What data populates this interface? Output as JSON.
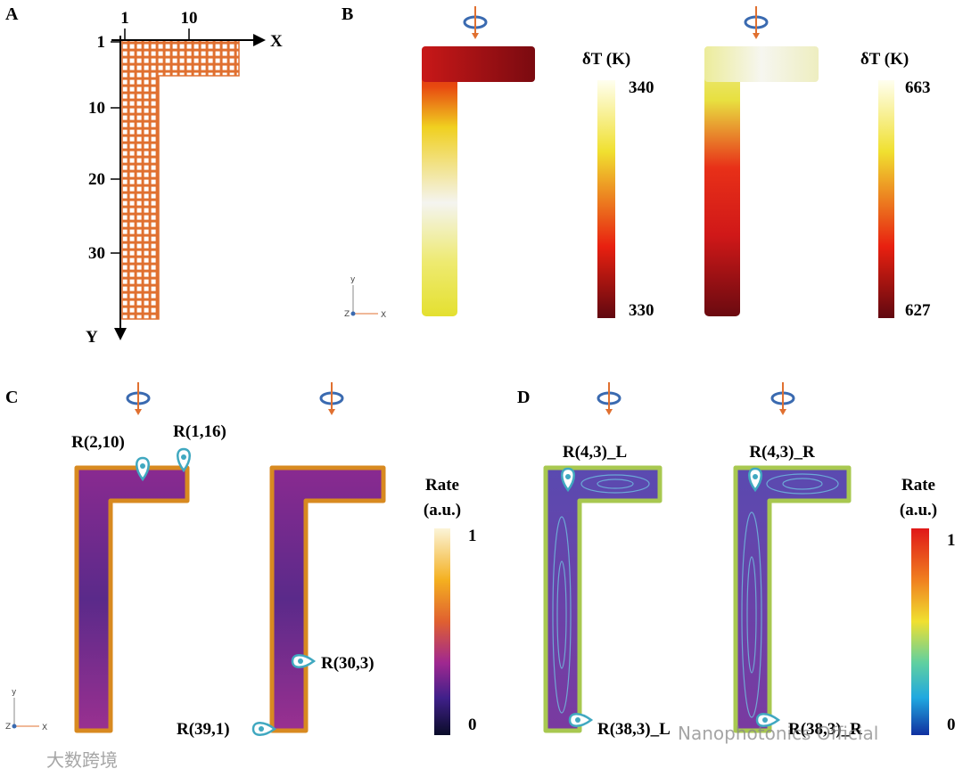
{
  "panels": [
    {
      "label": "A",
      "x_axis": "X",
      "y_axis": "Y",
      "x_ticks": [
        "1",
        "10"
      ],
      "y_ticks": [
        "1",
        "10",
        "20",
        "30"
      ]
    },
    {
      "label": "B",
      "colorbars": [
        {
          "title": "δT (K)",
          "max": "340",
          "min": "330"
        },
        {
          "title": "δT (K)",
          "max": "663",
          "min": "627"
        }
      ],
      "triad": [
        "y",
        "Z",
        "X"
      ]
    },
    {
      "label": "C",
      "markers": [
        "R(2,10)",
        "R(1,16)",
        "R(30,3)",
        "R(39,1)"
      ],
      "colorbar": {
        "title": "Rate",
        "unit": "(a.u.)",
        "max": "1",
        "min": "0"
      },
      "triad": [
        "y",
        "Z",
        "X"
      ]
    },
    {
      "label": "D",
      "markers": [
        "R(4,3)_L",
        "R(4,3)_R",
        "R(38,3)_L",
        "R(38,3)_R"
      ],
      "colorbar": {
        "title": "Rate",
        "unit": "(a.u.)",
        "max": "1",
        "min": "0"
      }
    }
  ],
  "watermarks": [
    "Nanophotonics Official",
    "大数跨境"
  ]
}
